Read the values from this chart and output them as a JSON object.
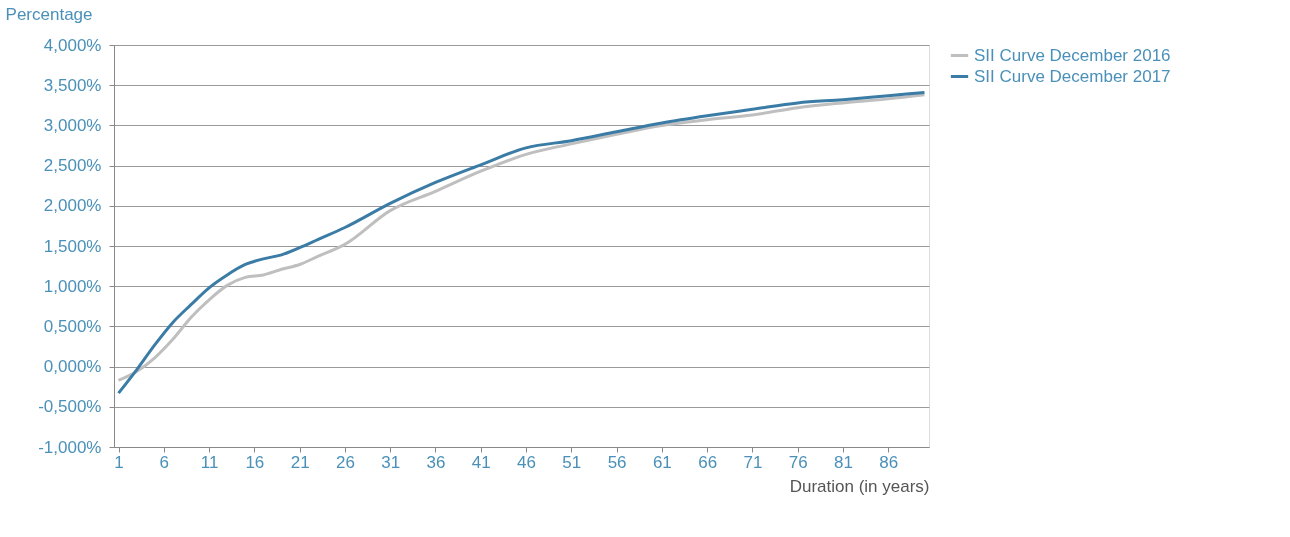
{
  "chart_data": {
    "type": "line",
    "ylabel": "Percentage",
    "xlabel": "Duration (in years)",
    "x": [
      1,
      3,
      5,
      7,
      9,
      11,
      13,
      15,
      17,
      19,
      21,
      23,
      26,
      31,
      36,
      41,
      46,
      51,
      56,
      61,
      66,
      71,
      76,
      81,
      86,
      90
    ],
    "series": [
      {
        "name": "SII Curve December 2016",
        "color": "#bfbfbf",
        "values": [
          -0.17,
          -0.06,
          0.11,
          0.34,
          0.61,
          0.83,
          1.01,
          1.11,
          1.14,
          1.21,
          1.27,
          1.37,
          1.52,
          1.94,
          2.18,
          2.43,
          2.64,
          2.77,
          2.89,
          3.0,
          3.07,
          3.13,
          3.22,
          3.28,
          3.33,
          3.38
        ]
      },
      {
        "name": "SII Curve December 2017",
        "color": "#3a7ca5",
        "values": [
          -0.33,
          -0.04,
          0.27,
          0.55,
          0.77,
          0.98,
          1.14,
          1.27,
          1.34,
          1.39,
          1.48,
          1.58,
          1.73,
          2.03,
          2.29,
          2.51,
          2.72,
          2.81,
          2.92,
          3.03,
          3.12,
          3.2,
          3.28,
          3.32,
          3.37,
          3.41
        ]
      }
    ],
    "xlim": [
      0.5,
      90.5
    ],
    "xticks": [
      1,
      6,
      11,
      16,
      21,
      26,
      31,
      36,
      41,
      46,
      51,
      56,
      61,
      66,
      71,
      76,
      81,
      86
    ],
    "ylim": [
      -1,
      4
    ],
    "yticks": [
      {
        "value": -1,
        "label": "-1,000%"
      },
      {
        "value": -0.5,
        "label": "-0,500%"
      },
      {
        "value": 0,
        "label": "0,000%"
      },
      {
        "value": 0.5,
        "label": "0,500%"
      },
      {
        "value": 1,
        "label": "1,000%"
      },
      {
        "value": 1.5,
        "label": "1,500%"
      },
      {
        "value": 2,
        "label": "2,000%"
      },
      {
        "value": 2.5,
        "label": "2,500%"
      },
      {
        "value": 3,
        "label": "3,000%"
      },
      {
        "value": 3.5,
        "label": "3,500%"
      },
      {
        "value": 4,
        "label": "4,000%"
      }
    ],
    "grid": "y",
    "legend": "right",
    "marker": "none",
    "line_style": "solid"
  }
}
